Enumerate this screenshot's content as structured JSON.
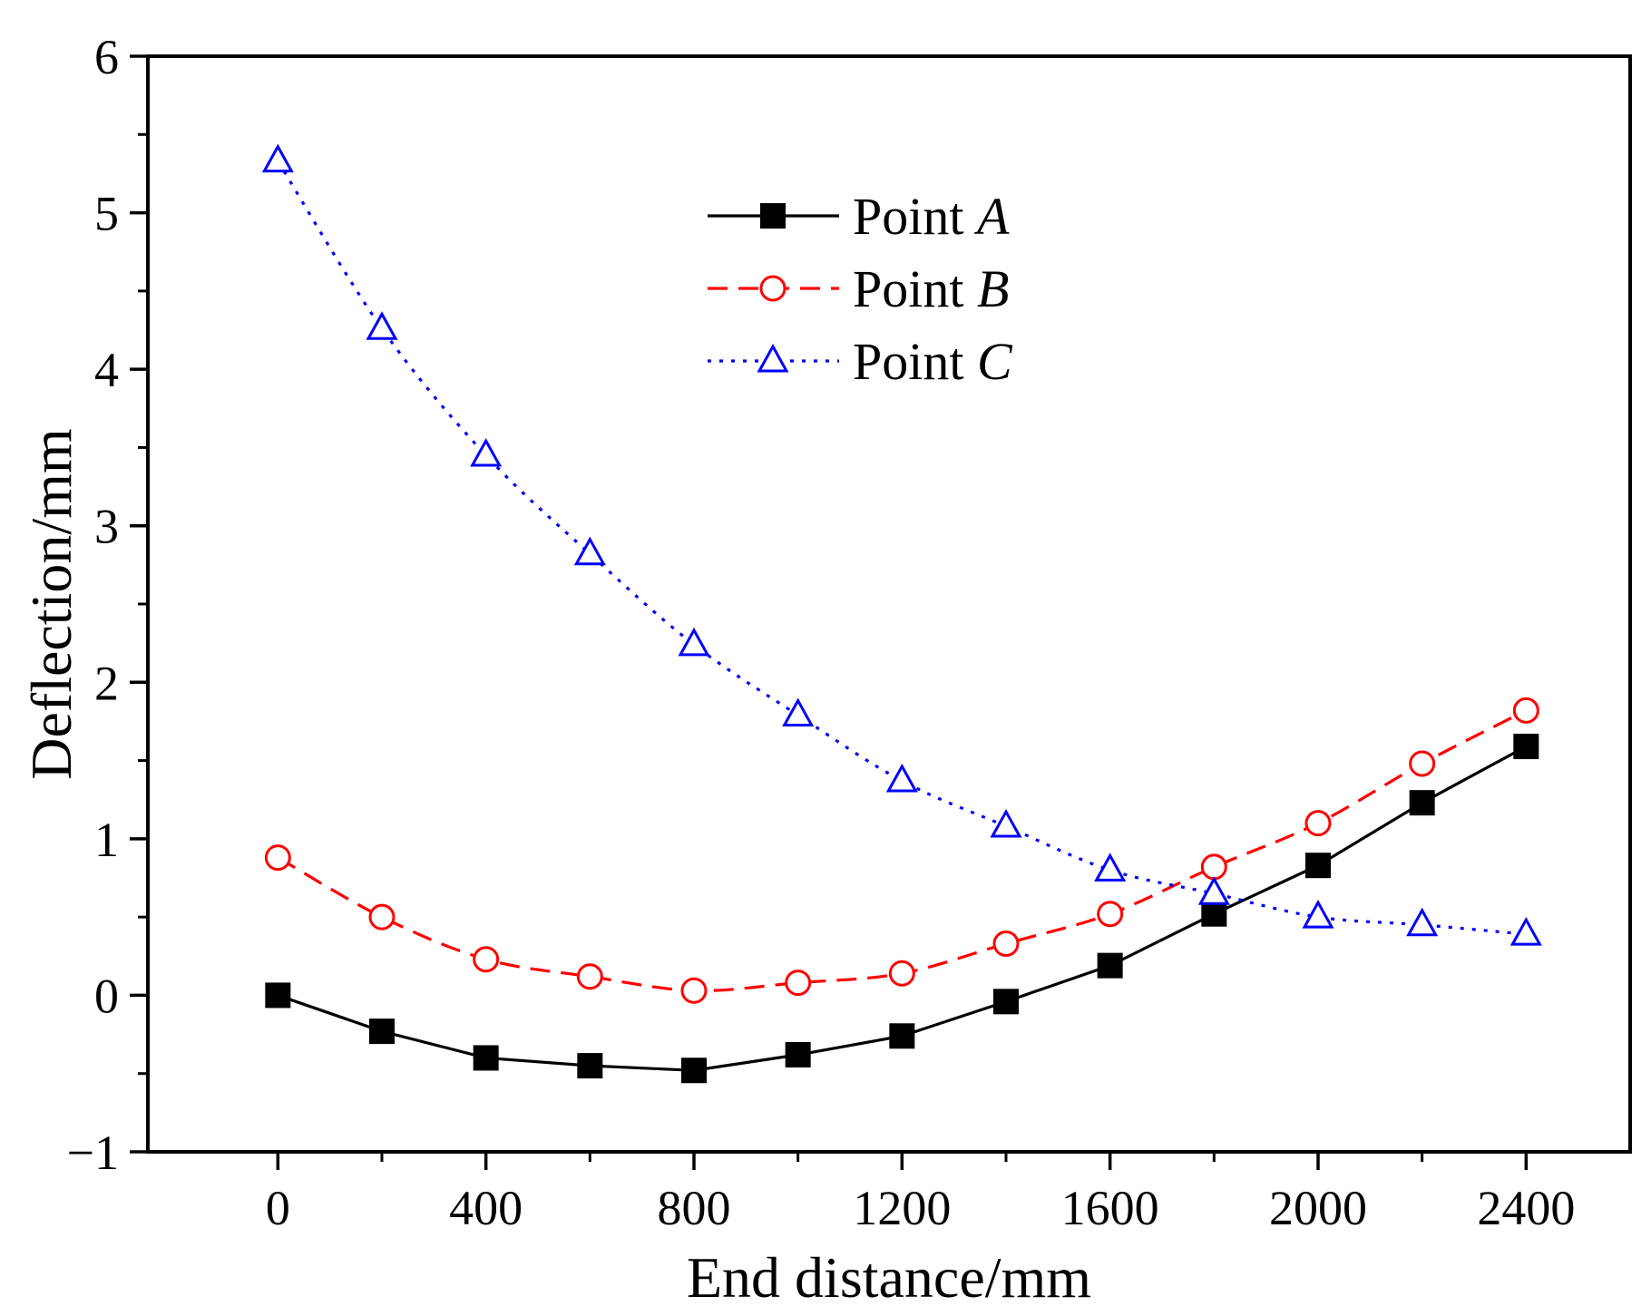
{
  "chart_data": {
    "type": "line",
    "title": "",
    "xlabel": "End distance/mm",
    "ylabel": "Deflection/mm",
    "xlim": [
      -250,
      2600
    ],
    "ylim": [
      -1,
      6
    ],
    "xticks": [
      0,
      400,
      800,
      1200,
      1600,
      2000,
      2400
    ],
    "xtick_labels": [
      "0",
      "400",
      "800",
      "1200",
      "1600",
      "2000",
      "2400"
    ],
    "xminor": [
      200,
      600,
      1000,
      1400,
      1800,
      2200
    ],
    "yticks": [
      -1,
      0,
      1,
      2,
      3,
      4,
      5,
      6
    ],
    "ytick_labels": [
      "−1",
      "0",
      "1",
      "2",
      "3",
      "4",
      "5",
      "6"
    ],
    "yminor": [
      -0.5,
      0.5,
      1.5,
      2.5,
      3.5,
      4.5,
      5.5
    ],
    "legend_position": "top-center",
    "x": [
      0,
      200,
      400,
      600,
      800,
      1000,
      1200,
      1400,
      1600,
      1800,
      2000,
      2200,
      2400
    ],
    "series": [
      {
        "name": "Point ",
        "italic": "A",
        "color": "#000000",
        "dash": "solid",
        "marker": "filled-square",
        "values": [
          0.0,
          -0.23,
          -0.4,
          -0.45,
          -0.48,
          -0.38,
          -0.26,
          -0.04,
          0.19,
          0.52,
          0.83,
          1.23,
          1.59
        ]
      },
      {
        "name": "Point ",
        "italic": "B",
        "color": "#ff0000",
        "dash": "dashed",
        "marker": "open-circle",
        "values": [
          0.88,
          0.5,
          0.23,
          0.12,
          0.03,
          0.08,
          0.14,
          0.33,
          0.52,
          0.82,
          1.1,
          1.48,
          1.82
        ]
      },
      {
        "name": "Point ",
        "italic": "C",
        "color": "#0000ff",
        "dash": "dotted",
        "marker": "open-triangle",
        "values": [
          5.33,
          4.26,
          3.45,
          2.82,
          2.24,
          1.79,
          1.37,
          1.08,
          0.8,
          0.65,
          0.5,
          0.45,
          0.39
        ]
      }
    ]
  }
}
